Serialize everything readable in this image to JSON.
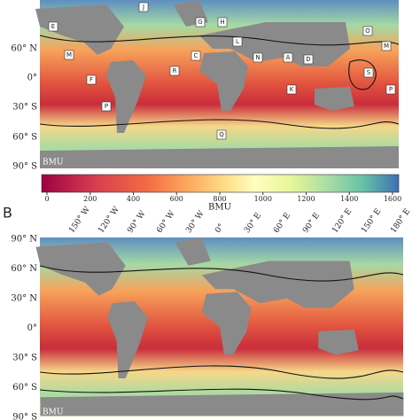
{
  "panel_a": {
    "lat_labels": [
      "60° N",
      "0°",
      "30° S",
      "60° S",
      "90° S"
    ],
    "corner_label": "BMU",
    "regions": [
      "E",
      "M",
      "F",
      "P",
      "J",
      "G",
      "H",
      "L",
      "C",
      "R",
      "N",
      "A",
      "D",
      "K",
      "Q",
      "S",
      "O",
      "M",
      "P"
    ]
  },
  "colorbar": {
    "range": [
      0,
      1600
    ],
    "ticks": [
      0,
      200,
      400,
      600,
      800,
      1000,
      1200,
      1400,
      1600
    ],
    "label": "BMU"
  },
  "panel_b": {
    "letter": "B",
    "lon_labels": [
      "150° W",
      "120° W",
      "90° W",
      "60° W",
      "30° W",
      "0°",
      "30° E",
      "60° E",
      "90° E",
      "120° E",
      "150° E",
      "180° E"
    ],
    "lat_labels": [
      "90° N",
      "60° N",
      "30° N",
      "0°",
      "30° S",
      "60° S",
      "90° S"
    ],
    "corner_label": "BMU"
  }
}
